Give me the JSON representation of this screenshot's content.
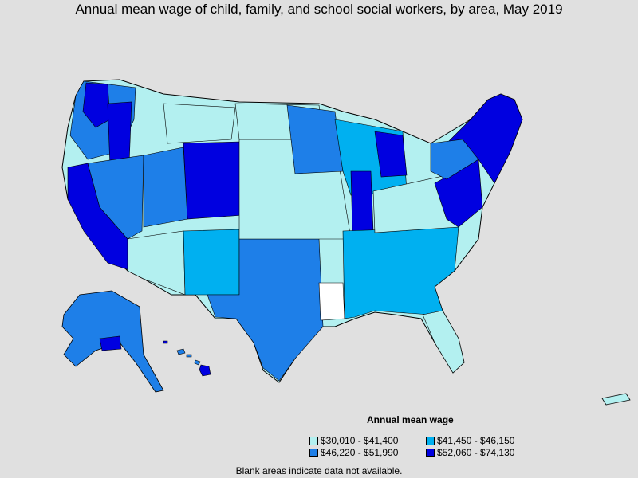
{
  "title": "Annual mean wage of child, family, and school social workers, by area, May 2019",
  "legend": {
    "title": "Annual mean wage",
    "items": [
      {
        "label": "$30,010 - $41,400",
        "color": "#b3f0f0"
      },
      {
        "label": "$41,450 - $46,150",
        "color": "#00b0f0"
      },
      {
        "label": "$46,220 - $51,990",
        "color": "#1e7fe8"
      },
      {
        "label": "$52,060 - $74,130",
        "color": "#0000e0"
      }
    ]
  },
  "note": "Blank areas indicate data not available.",
  "colors": {
    "background": "#e0e0e0",
    "border": "#000000",
    "no_data": "#ffffff"
  }
}
